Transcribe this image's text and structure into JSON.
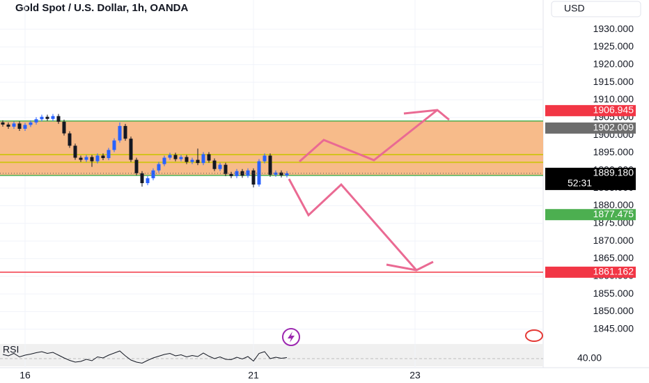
{
  "chart_data": {
    "type": "candlestick",
    "title": "Gold Spot / U.S. Dollar, 1h, OANDA",
    "currency": "USD",
    "categories": [
      null,
      null,
      null,
      null,
      "16",
      null,
      null,
      null,
      null,
      null,
      null,
      null,
      null,
      null,
      null,
      null,
      null,
      null,
      null,
      null,
      null,
      null,
      null,
      null,
      null,
      null,
      null,
      null,
      null,
      null,
      null,
      null,
      null,
      null,
      null,
      null,
      null,
      null,
      null,
      null,
      null,
      null,
      null,
      null,
      null,
      "21",
      null,
      null,
      null,
      null,
      null,
      null,
      null,
      null,
      null,
      null,
      null,
      null,
      null,
      null,
      null,
      null,
      null,
      null,
      null,
      null,
      null,
      null,
      null,
      null,
      null,
      null,
      null,
      null,
      "23",
      null,
      null,
      null,
      null,
      null,
      null,
      null,
      null,
      null,
      null,
      null,
      null,
      null,
      null,
      null,
      null,
      null,
      null,
      null,
      null,
      null,
      null
    ],
    "open": [
      1903.6,
      1903.0,
      1902.4,
      1903.3,
      1901.8,
      1902.9,
      1903.6,
      1904.5,
      1905.2,
      1904.6,
      1905.4,
      1903.8,
      1900.5,
      1897.0,
      1893.6,
      1893.0,
      1893.8,
      1892.6,
      1894.2,
      1893.5,
      1895.8,
      1898.5,
      1902.6,
      1899.0,
      1893.0,
      1889.2,
      1886.4,
      1887.8,
      1890.0,
      1891.8,
      1893.6,
      1894.4,
      1893.2,
      1893.8,
      1892.4,
      1893.0,
      1892.1,
      1894.6,
      1892.8,
      1890.4,
      1891.6,
      1889.0,
      1888.4,
      1889.8,
      1888.5,
      1890.0,
      1886.0,
      1892.6,
      1894.2,
      1888.8,
      1889.4,
      1888.6,
      null,
      null,
      null,
      null,
      null,
      null,
      null,
      null,
      null,
      null,
      null,
      null,
      null,
      null,
      null,
      null,
      null,
      null,
      null,
      null,
      null,
      null,
      null,
      null,
      null,
      null,
      null,
      null,
      null,
      null,
      null,
      null,
      null,
      null,
      null,
      null,
      null,
      null,
      null,
      null,
      null,
      null,
      null,
      null,
      null
    ],
    "high": [
      1904.2,
      1903.6,
      1903.9,
      1903.9,
      1903.5,
      1904.2,
      1905.1,
      1905.8,
      1905.8,
      1906.0,
      1906.0,
      1904.4,
      1901.1,
      1897.6,
      1894.2,
      1894.4,
      1894.4,
      1894.8,
      1894.8,
      1896.4,
      1899.1,
      1903.6,
      1903.2,
      1899.6,
      1893.6,
      1889.8,
      1888.4,
      1890.6,
      1892.4,
      1894.2,
      1895.0,
      1895.0,
      1894.4,
      1894.4,
      1893.6,
      1896.2,
      1895.2,
      1895.2,
      1893.4,
      1892.2,
      1892.2,
      1889.6,
      1890.4,
      1890.4,
      1890.6,
      1890.6,
      1893.2,
      1894.8,
      1894.8,
      1890.0,
      1890.0,
      1889.8,
      null,
      null,
      null,
      null,
      null,
      null,
      null,
      null,
      null,
      null,
      null,
      null,
      null,
      null,
      null,
      null,
      null,
      null,
      null,
      null,
      null,
      null,
      null,
      null,
      null,
      null,
      null,
      null,
      null,
      null,
      null,
      null,
      null,
      null,
      null,
      null,
      null,
      null,
      null,
      null,
      null,
      null,
      null,
      null,
      null
    ],
    "low": [
      1902.4,
      1901.8,
      1901.8,
      1901.2,
      1901.2,
      1902.3,
      1903.0,
      1903.9,
      1904.0,
      1904.0,
      1903.2,
      1899.9,
      1896.4,
      1893.0,
      1892.4,
      1892.4,
      1891.0,
      1892.0,
      1892.9,
      1892.9,
      1895.2,
      1897.9,
      1898.4,
      1892.4,
      1888.6,
      1885.4,
      1885.8,
      1887.2,
      1889.4,
      1891.2,
      1893.0,
      1892.6,
      1892.6,
      1891.8,
      1891.8,
      1891.5,
      1891.5,
      1892.2,
      1889.8,
      1889.8,
      1888.4,
      1887.8,
      1887.8,
      1887.9,
      1887.9,
      1885.2,
      1885.4,
      1892.0,
      1888.2,
      1888.2,
      1888.0,
      1888.0,
      null,
      null,
      null,
      null,
      null,
      null,
      null,
      null,
      null,
      null,
      null,
      null,
      null,
      null,
      null,
      null,
      null,
      null,
      null,
      null,
      null,
      null,
      null,
      null,
      null,
      null,
      null,
      null,
      null,
      null,
      null,
      null,
      null,
      null,
      null,
      null,
      null,
      null,
      null,
      null,
      null,
      null,
      null,
      null,
      null
    ],
    "close": [
      1903.0,
      1902.4,
      1903.3,
      1901.8,
      1902.9,
      1903.6,
      1904.5,
      1905.2,
      1904.6,
      1905.4,
      1903.8,
      1900.5,
      1897.0,
      1893.6,
      1893.0,
      1893.8,
      1892.6,
      1894.2,
      1893.5,
      1895.8,
      1898.5,
      1902.6,
      1899.0,
      1893.0,
      1889.2,
      1886.4,
      1887.8,
      1890.0,
      1891.8,
      1893.6,
      1894.4,
      1893.2,
      1893.8,
      1892.4,
      1893.0,
      1892.1,
      1894.6,
      1892.8,
      1890.4,
      1891.6,
      1889.0,
      1888.4,
      1889.8,
      1888.5,
      1890.0,
      1886.0,
      1892.6,
      1894.2,
      1888.8,
      1889.4,
      1888.6,
      1889.18,
      null,
      null,
      null,
      null,
      null,
      null,
      null,
      null,
      null,
      null,
      null,
      null,
      null,
      null,
      null,
      null,
      null,
      null,
      null,
      null,
      null,
      null,
      null,
      null,
      null,
      null,
      null,
      null,
      null,
      null,
      null,
      null,
      null,
      null,
      null,
      null,
      null,
      null,
      null,
      null,
      null,
      null,
      null,
      null,
      null
    ],
    "up_color": "#2962ff",
    "down_color": "#131722",
    "ylim": [
      1841.6,
      1938.3
    ],
    "yticks": [
      {
        "value": 1845,
        "label": "1845.000"
      },
      {
        "value": 1850,
        "label": "1850.000"
      },
      {
        "value": 1855,
        "label": "1855.000"
      },
      {
        "value": 1860,
        "label": "1860.000"
      },
      {
        "value": 1865,
        "label": "1865.000"
      },
      {
        "value": 1870,
        "label": "1870.000"
      },
      {
        "value": 1875,
        "label": "1875.000"
      },
      {
        "value": 1880,
        "label": "1880.000"
      },
      {
        "value": 1885,
        "label": "1885.000"
      },
      {
        "value": 1890,
        "label": "1890.000"
      },
      {
        "value": 1895,
        "label": "1895.000"
      },
      {
        "value": 1900,
        "label": "1900.000"
      },
      {
        "value": 1905,
        "label": "1905.000"
      },
      {
        "value": 1910,
        "label": "1910.000"
      },
      {
        "value": 1915,
        "label": "1915.000"
      },
      {
        "value": 1920,
        "label": "1920.000"
      },
      {
        "value": 1925,
        "label": "1925.000"
      },
      {
        "value": 1930,
        "label": "1930.000"
      }
    ],
    "grid": true,
    "zone": {
      "range": [
        1888.6,
        1904.0
      ],
      "color": "#f7bb8a",
      "edge_color": "#4caf50"
    },
    "levels": {
      "values": [
        1894.5,
        1892.3
      ],
      "color": "#d4c21f"
    },
    "price_labels": [
      {
        "value": 1906.945,
        "label": "1906.945",
        "color": "#f23645"
      },
      {
        "value": 1902.009,
        "label": "1902.009",
        "color": "#6d6d6d"
      },
      {
        "value": 1889.18,
        "label": "1889.180",
        "color": "#000000",
        "countdown": "52:31"
      },
      {
        "value": 1877.475,
        "label": "1877.475",
        "color": "#4caf50"
      },
      {
        "value": 1861.162,
        "label": "1861.162",
        "color": "#f23645",
        "line": true
      }
    ],
    "rsi": {
      "label": "RSI",
      "color": "#131722",
      "ylim": [
        20,
        80
      ],
      "yticks": [
        {
          "value": 40,
          "label": "40.00"
        }
      ],
      "values": [
        52,
        48,
        55,
        45,
        50,
        53,
        57,
        60,
        55,
        58,
        50,
        42,
        35,
        30,
        32,
        38,
        34,
        45,
        42,
        50,
        56,
        62,
        48,
        36,
        30,
        27,
        35,
        42,
        47,
        52,
        55,
        48,
        51,
        45,
        49,
        46,
        56,
        47,
        40,
        45,
        38,
        37,
        44,
        39,
        46,
        33,
        55,
        60,
        40,
        44,
        41,
        43
      ]
    }
  }
}
